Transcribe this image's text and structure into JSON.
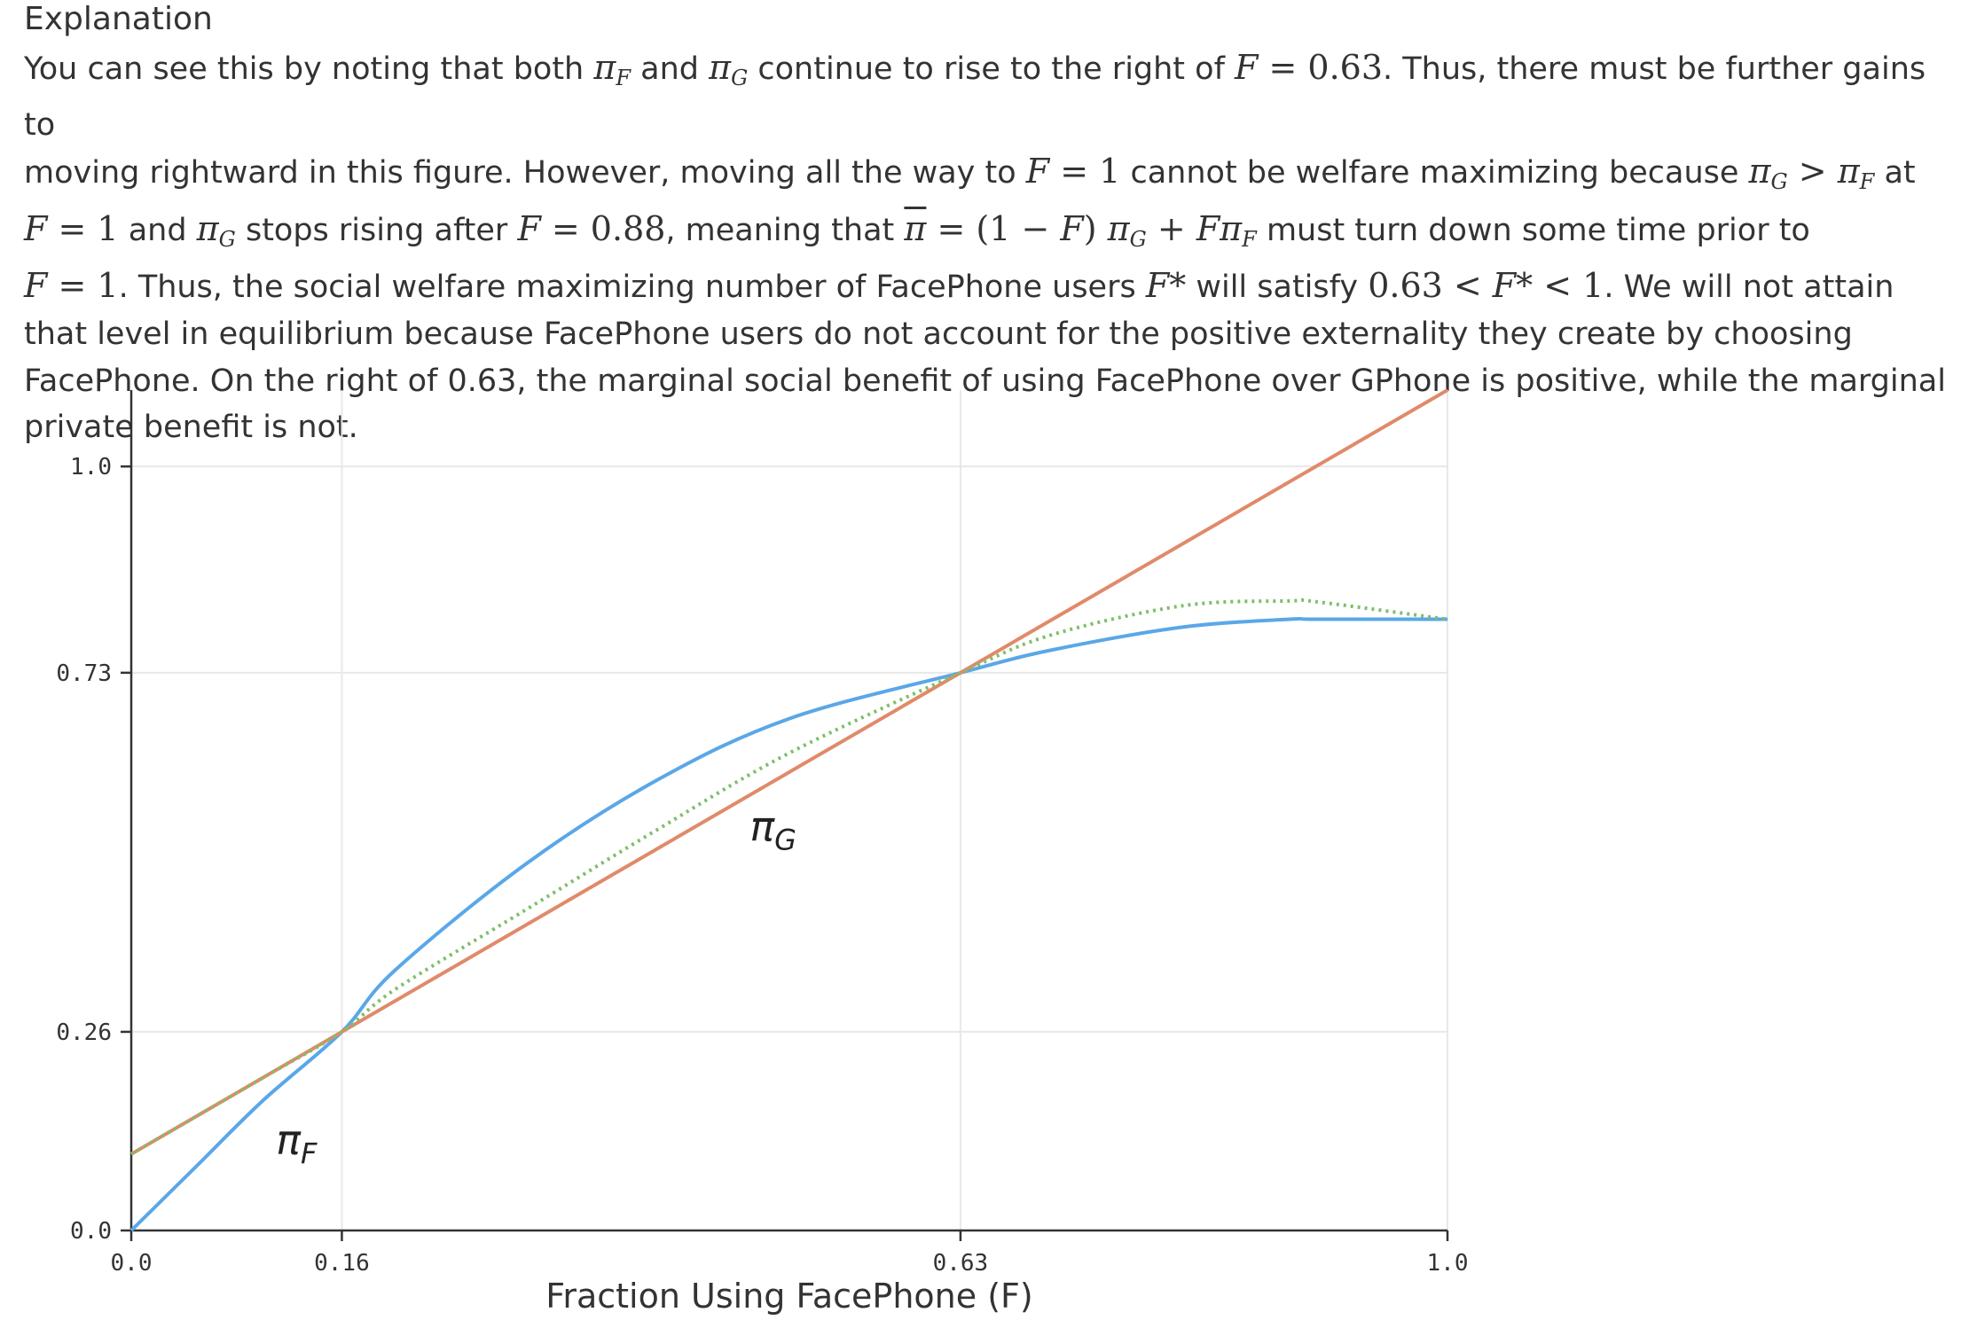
{
  "heading": "Explanation",
  "explanation": {
    "l1_a": "You can see this by noting that both ",
    "l1_b": " and ",
    "l1_c": " continue to rise to the right of ",
    "l1_d": ". Thus, there must be further gains to",
    "l2_a": "moving rightward in this figure. However, moving all the way to ",
    "l2_b": " cannot be welfare maximizing because ",
    "l2_c": " at",
    "l3_a": " and ",
    "l3_b": " stops rising after ",
    "l3_c": ", meaning that ",
    "l3_d": " must turn down some time prior to",
    "l4_a": ". Thus, the social welfare maximizing number of FacePhone users ",
    "l4_b": " will satisfy ",
    "l4_c": ". We will not attain",
    "l5": "that level in equilibrium because FacePhone users do not account for the positive externality they create by choosing",
    "l6": "FacePhone. On the right of 0.63, the marginal social benefit of using FacePhone over GPhone is positive, while the marginal",
    "l7": "private benefit is not.",
    "math_piF": "πF",
    "math_piG": "πG",
    "math_F063": "F = 0.63",
    "math_F1": "F = 1",
    "math_piG_gt_piF": "πG > πF",
    "math_F088": "F = 0.88",
    "math_pibar": "π̄ = (1 − F) πG + FπF",
    "math_Fstar": "F*",
    "math_ineq": "0.63 < F* < 1"
  },
  "chart_data": {
    "type": "line",
    "xlabel": "Fraction Using FacePhone (F)",
    "ylabel": "",
    "xlim": [
      0.0,
      1.0
    ],
    "ylim": [
      0.0,
      1.1
    ],
    "xticks": [
      0.0,
      0.16,
      0.63,
      1.0
    ],
    "xtick_labels": [
      "0.0",
      "0.16",
      "0.63",
      "1.0"
    ],
    "yticks": [
      0.0,
      0.26,
      0.73,
      1.0
    ],
    "ytick_labels": [
      "0.0",
      "0.26",
      "0.73",
      "1.0"
    ],
    "grid": true,
    "series": [
      {
        "name": "πF",
        "color": "#5aa7e8",
        "style": "solid",
        "x": [
          0.0,
          0.05,
          0.1,
          0.16,
          0.2,
          0.3,
          0.4,
          0.5,
          0.63,
          0.7,
          0.8,
          0.88,
          0.9,
          1.0
        ],
        "y": [
          0.0,
          0.085,
          0.17,
          0.26,
          0.34,
          0.48,
          0.59,
          0.67,
          0.73,
          0.76,
          0.79,
          0.8,
          0.8,
          0.8
        ]
      },
      {
        "name": "πG",
        "color": "#e08a6a",
        "style": "solid",
        "x": [
          0.0,
          0.16,
          0.63,
          1.0
        ],
        "y": [
          0.1,
          0.26,
          0.73,
          1.1
        ]
      },
      {
        "color": "#7fbf6a",
        "style": "dotted",
        "x": [
          0.0,
          0.05,
          0.1,
          0.16,
          0.2,
          0.3,
          0.4,
          0.5,
          0.63,
          0.7,
          0.8,
          0.88,
          0.9,
          1.0
        ],
        "y": [
          0.1,
          0.15,
          0.2,
          0.26,
          0.315,
          0.42,
          0.525,
          0.625,
          0.73,
          0.78,
          0.818,
          0.824,
          0.823,
          0.8
        ]
      }
    ],
    "annotations": [
      {
        "text": "πF",
        "x": 0.11,
        "y": 0.1
      },
      {
        "text": "πG",
        "x": 0.47,
        "y": 0.51
      }
    ]
  }
}
